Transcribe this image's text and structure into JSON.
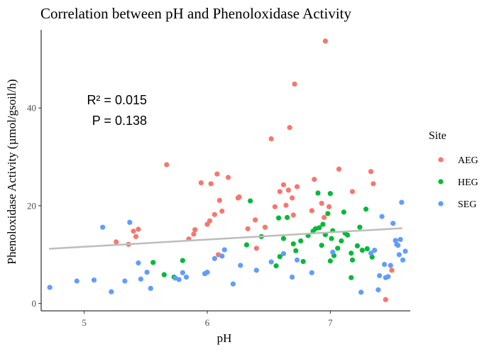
{
  "chart_data": {
    "type": "scatter",
    "title": "Correlation between pH and Phenoloxidase Activity",
    "xlabel": "pH",
    "ylabel": "Phenoloxidase Activity (µmol/gsoil/h)",
    "xlim": [
      4.65,
      7.65
    ],
    "ylim": [
      -1.5,
      56
    ],
    "xticks": [
      5,
      6,
      7
    ],
    "yticks": [
      0,
      20,
      40
    ],
    "grid": false,
    "legend": {
      "title": "Site",
      "position": "right"
    },
    "annotations": {
      "r2": "R² = 0.015",
      "p": "P = 0.138"
    },
    "trendline": {
      "x": [
        4.72,
        7.58
      ],
      "y": [
        11.2,
        15.4
      ],
      "color": "#bdbdbd"
    },
    "series": [
      {
        "name": "AEG",
        "color": "#F8766D",
        "points": [
          [
            5.26,
            12.6
          ],
          [
            5.36,
            12.1
          ],
          [
            5.4,
            14.8
          ],
          [
            5.42,
            13.7
          ],
          [
            5.44,
            15.2
          ],
          [
            5.67,
            28.4
          ],
          [
            5.85,
            13.2
          ],
          [
            5.89,
            14.2
          ],
          [
            5.9,
            15.1
          ],
          [
            5.95,
            24.7
          ],
          [
            6.0,
            16.2
          ],
          [
            6.02,
            16.9
          ],
          [
            6.03,
            24.5
          ],
          [
            6.06,
            18.2
          ],
          [
            6.08,
            26.5
          ],
          [
            6.09,
            10.0
          ],
          [
            6.1,
            21.1
          ],
          [
            6.12,
            18.9
          ],
          [
            6.17,
            25.8
          ],
          [
            6.25,
            21.6
          ],
          [
            6.26,
            21.8
          ],
          [
            6.33,
            15.3
          ],
          [
            6.39,
            17.1
          ],
          [
            6.4,
            11.3
          ],
          [
            6.47,
            15.6
          ],
          [
            6.52,
            33.7
          ],
          [
            6.55,
            19.8
          ],
          [
            6.59,
            22.9
          ],
          [
            6.62,
            24.3
          ],
          [
            6.64,
            20.1
          ],
          [
            6.66,
            23.2
          ],
          [
            6.67,
            36.0
          ],
          [
            6.69,
            21.6
          ],
          [
            6.7,
            18.1
          ],
          [
            6.71,
            44.9
          ],
          [
            6.73,
            23.9
          ],
          [
            6.85,
            19.0
          ],
          [
            6.87,
            25.4
          ],
          [
            6.93,
            20.5
          ],
          [
            6.95,
            17.6
          ],
          [
            6.96,
            53.7
          ],
          [
            6.99,
            19.8
          ],
          [
            7.07,
            27.5
          ],
          [
            7.18,
            22.9
          ],
          [
            7.33,
            27.0
          ],
          [
            7.35,
            24.5
          ],
          [
            7.45,
            0.8
          ],
          [
            7.5,
            6.8
          ]
        ]
      },
      {
        "name": "HEG",
        "color": "#00BA38",
        "points": [
          [
            5.56,
            8.4
          ],
          [
            5.65,
            5.9
          ],
          [
            5.73,
            5.4
          ],
          [
            5.8,
            8.8
          ],
          [
            6.32,
            12.0
          ],
          [
            6.35,
            21.0
          ],
          [
            6.44,
            13.7
          ],
          [
            6.56,
            7.7
          ],
          [
            6.58,
            17.5
          ],
          [
            6.59,
            9.6
          ],
          [
            6.62,
            13.3
          ],
          [
            6.65,
            17.6
          ],
          [
            6.7,
            12.2
          ],
          [
            6.72,
            10.8
          ],
          [
            6.76,
            12.8
          ],
          [
            6.78,
            8.6
          ],
          [
            6.82,
            13.9
          ],
          [
            6.86,
            14.8
          ],
          [
            6.88,
            15.3
          ],
          [
            6.9,
            22.6
          ],
          [
            6.91,
            15.5
          ],
          [
            6.93,
            11.9
          ],
          [
            6.94,
            16.2
          ],
          [
            6.96,
            14.1
          ],
          [
            6.98,
            18.4
          ],
          [
            7.0,
            8.7
          ],
          [
            7.0,
            22.5
          ],
          [
            7.01,
            13.3
          ],
          [
            7.02,
            14.9
          ],
          [
            7.03,
            9.8
          ],
          [
            7.06,
            11.3
          ],
          [
            7.09,
            12.8
          ],
          [
            7.11,
            18.7
          ],
          [
            7.12,
            14.4
          ],
          [
            7.14,
            14.0
          ],
          [
            7.17,
            10.3
          ],
          [
            7.17,
            5.3
          ],
          [
            7.18,
            8.9
          ],
          [
            7.22,
            11.8
          ],
          [
            7.24,
            15.6
          ],
          [
            7.26,
            10.9
          ],
          [
            7.29,
            19.3
          ],
          [
            7.3,
            11.2
          ],
          [
            7.34,
            9.5
          ]
        ]
      },
      {
        "name": "SEG",
        "color": "#619CFF",
        "points": [
          [
            4.72,
            3.3
          ],
          [
            4.94,
            4.6
          ],
          [
            5.08,
            4.8
          ],
          [
            5.15,
            15.6
          ],
          [
            5.22,
            2.4
          ],
          [
            5.33,
            4.6
          ],
          [
            5.37,
            16.6
          ],
          [
            5.44,
            8.3
          ],
          [
            5.46,
            5.0
          ],
          [
            5.51,
            6.4
          ],
          [
            5.54,
            3.1
          ],
          [
            5.74,
            5.2
          ],
          [
            5.77,
            4.9
          ],
          [
            5.8,
            6.3
          ],
          [
            5.83,
            5.4
          ],
          [
            5.98,
            6.1
          ],
          [
            6.0,
            6.4
          ],
          [
            6.06,
            9.2
          ],
          [
            6.12,
            9.7
          ],
          [
            6.14,
            11.0
          ],
          [
            6.21,
            4.0
          ],
          [
            6.27,
            7.8
          ],
          [
            6.4,
            6.8
          ],
          [
            6.52,
            8.5
          ],
          [
            6.62,
            10.2
          ],
          [
            6.69,
            5.4
          ],
          [
            6.73,
            8.9
          ],
          [
            6.85,
            6.3
          ],
          [
            7.02,
            10.5
          ],
          [
            7.25,
            2.3
          ],
          [
            7.33,
            10.3
          ],
          [
            7.36,
            10.9
          ],
          [
            7.39,
            2.8
          ],
          [
            7.4,
            5.7
          ],
          [
            7.42,
            17.8
          ],
          [
            7.44,
            8.0
          ],
          [
            7.45,
            5.3
          ],
          [
            7.47,
            5.5
          ],
          [
            7.49,
            7.8
          ],
          [
            7.51,
            16.4
          ],
          [
            7.53,
            12.9
          ],
          [
            7.54,
            12.1
          ],
          [
            7.55,
            11.9
          ],
          [
            7.56,
            10.0
          ],
          [
            7.57,
            13.1
          ],
          [
            7.58,
            20.7
          ],
          [
            7.59,
            8.9
          ],
          [
            7.61,
            10.7
          ]
        ]
      }
    ]
  }
}
